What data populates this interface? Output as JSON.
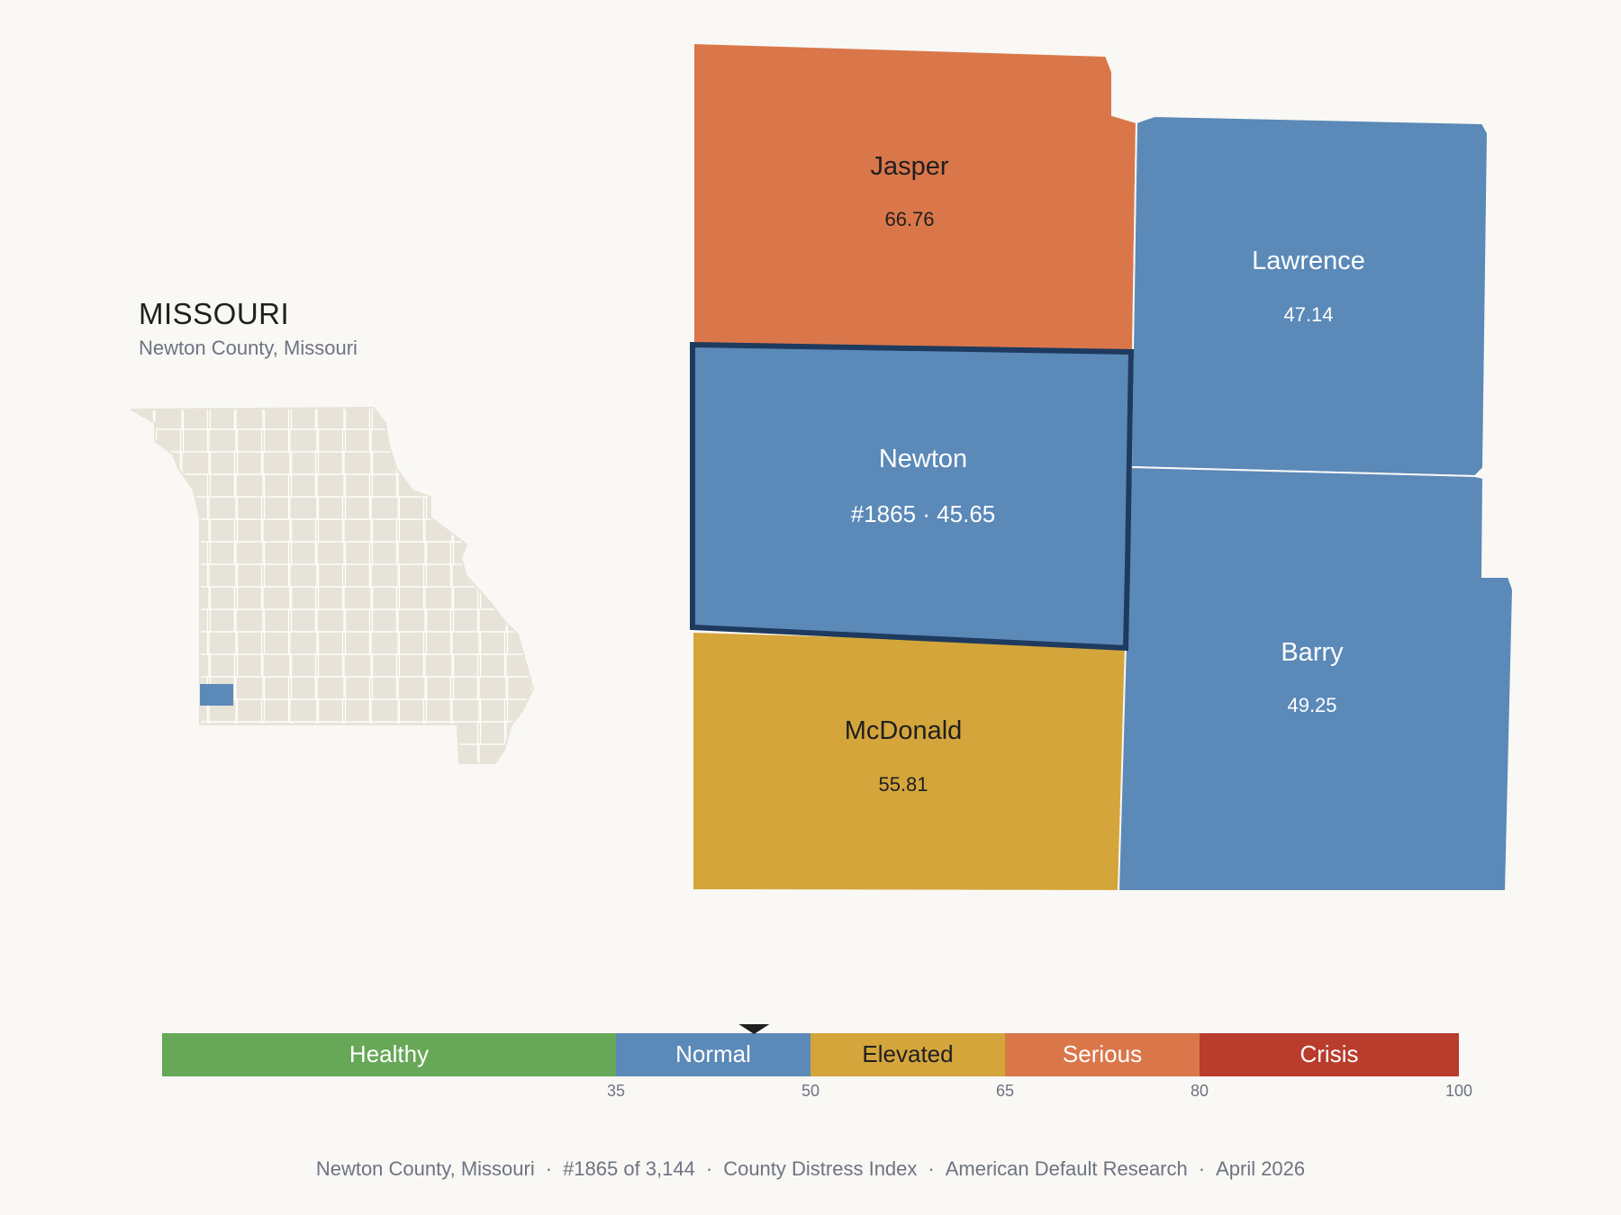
{
  "header": {
    "state_title": "MISSOURI",
    "subtitle": "Newton County, Missouri"
  },
  "colors": {
    "background": "#f9f8f5",
    "inset_fill": "#e8e3d8",
    "inset_stroke": "#ffffff",
    "highlight": "#5b89b8",
    "focus_outline": "#1e3a5f",
    "healthy": "#67a758",
    "normal": "#5b89b8",
    "elevated": "#d4a53b",
    "serious": "#da774a",
    "crisis": "#b93c2c"
  },
  "counties": [
    {
      "id": "jasper",
      "name": "Jasper",
      "value_text": "66.76",
      "value": 66.76,
      "category": "serious",
      "text_color": "#1f1f1f"
    },
    {
      "id": "lawrence",
      "name": "Lawrence",
      "value_text": "47.14",
      "value": 47.14,
      "category": "normal",
      "text_color": "#ffffff"
    },
    {
      "id": "newton",
      "name": "Newton",
      "value_text": "#1865 · 45.65",
      "value": 45.65,
      "category": "normal",
      "text_color": "#ffffff",
      "focus": true
    },
    {
      "id": "barry",
      "name": "Barry",
      "value_text": "49.25",
      "value": 49.25,
      "category": "normal",
      "text_color": "#ffffff"
    },
    {
      "id": "mcdonald",
      "name": "McDonald",
      "value_text": "55.81",
      "value": 55.81,
      "category": "elevated",
      "text_color": "#1f1f1f"
    }
  ],
  "legend": {
    "min": 0,
    "max": 100,
    "marker_value": 45.65,
    "segments": [
      {
        "label": "Healthy",
        "from": 0,
        "to": 35,
        "color": "#67a758",
        "text_color": "#ffffff"
      },
      {
        "label": "Normal",
        "from": 35,
        "to": 50,
        "color": "#5b89b8",
        "text_color": "#ffffff"
      },
      {
        "label": "Elevated",
        "from": 50,
        "to": 65,
        "color": "#d4a53b",
        "text_color": "#1f1f1f"
      },
      {
        "label": "Serious",
        "from": 65,
        "to": 80,
        "color": "#da774a",
        "text_color": "#ffffff"
      },
      {
        "label": "Crisis",
        "from": 80,
        "to": 100,
        "color": "#b93c2c",
        "text_color": "#ffffff"
      }
    ],
    "ticks": [
      "35",
      "50",
      "65",
      "80",
      "100"
    ]
  },
  "footer": {
    "county": "Newton County, Missouri",
    "rank": "#1865 of 3,144",
    "index": "County Distress Index",
    "source": "American Default Research",
    "date": "April 2026"
  }
}
